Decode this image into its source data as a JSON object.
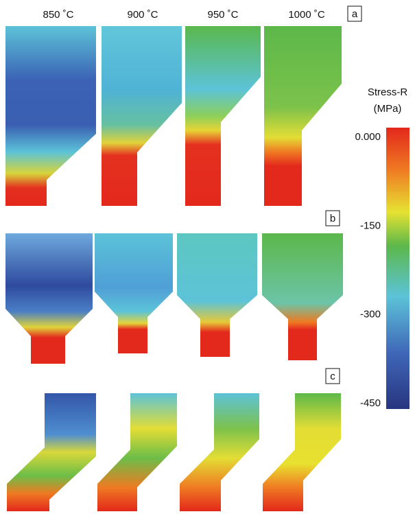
{
  "column_headers": [
    "850 ˚C",
    "900 ˚C",
    "950 ˚C",
    "1000 ˚C"
  ],
  "panel_labels": [
    "a",
    "b",
    "c"
  ],
  "colorbar": {
    "title": "Stress-R",
    "unit": "(MPa)",
    "lim": [
      0,
      -450
    ],
    "ticks": [
      {
        "value": 0,
        "label": "0.000"
      },
      -150,
      -300,
      -450
    ]
  }
}
